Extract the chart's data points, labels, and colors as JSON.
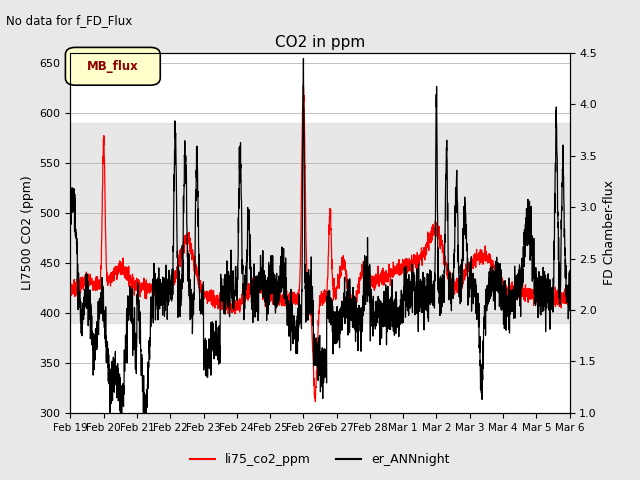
{
  "title": "CO2 in ppm",
  "suptitle": "No data for f_FD_Flux",
  "ylabel_left": "LI7500 CO2 (ppm)",
  "ylabel_right": "FD Chamber-flux",
  "ylim_left": [
    300,
    660
  ],
  "ylim_right": [
    1.0,
    4.5
  ],
  "yticks_left": [
    300,
    350,
    400,
    450,
    500,
    550,
    600,
    650
  ],
  "yticks_right": [
    1.0,
    1.5,
    2.0,
    2.5,
    3.0,
    3.5,
    4.0,
    4.5
  ],
  "xlim": [
    0,
    15
  ],
  "xtick_labels": [
    "Feb 19",
    "Feb 20",
    "Feb 21",
    "Feb 22",
    "Feb 23",
    "Feb 24",
    "Feb 25",
    "Feb 26",
    "Feb 27",
    "Feb 28",
    "Mar 1",
    "Mar 2",
    "Mar 3",
    "Mar 4",
    "Mar 5",
    "Mar 6"
  ],
  "legend_entries": [
    "li75_co2_ppm",
    "er_ANNnight"
  ],
  "legend_colors": [
    "red",
    "black"
  ],
  "shading_ymin": 390,
  "shading_ymax": 590,
  "background_color": "#e8e8e8",
  "plot_bg_color": "white",
  "MB_flux_box_color": "#ffffcc",
  "MB_flux_text_color": "darkred"
}
